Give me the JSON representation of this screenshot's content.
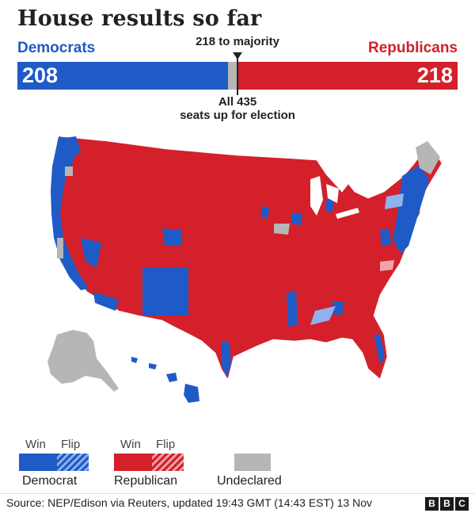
{
  "header": {
    "title": "House results so far",
    "majority_label": "218 to majority",
    "seats_note_line1": "All 435",
    "seats_note_line2": "seats up for election"
  },
  "results": {
    "democrats": {
      "label": "Democrats",
      "seats": 208,
      "color": "#1f5bc7"
    },
    "republicans": {
      "label": "Republicans",
      "seats": 218,
      "color": "#d3202a"
    },
    "undeclared": {
      "seats": 9,
      "color": "#b6b6b6"
    },
    "total_seats": 435,
    "majority": 218
  },
  "legend": {
    "win_label": "Win",
    "flip_label": "Flip",
    "democrat": "Democrat",
    "republican": "Republican",
    "undeclared": "Undeclared"
  },
  "footer": {
    "source": "Source: NEP/Edison via Reuters, updated 19:43 GMT (14:43 EST) 13 Nov",
    "logo_letters": [
      "B",
      "B",
      "C"
    ]
  }
}
